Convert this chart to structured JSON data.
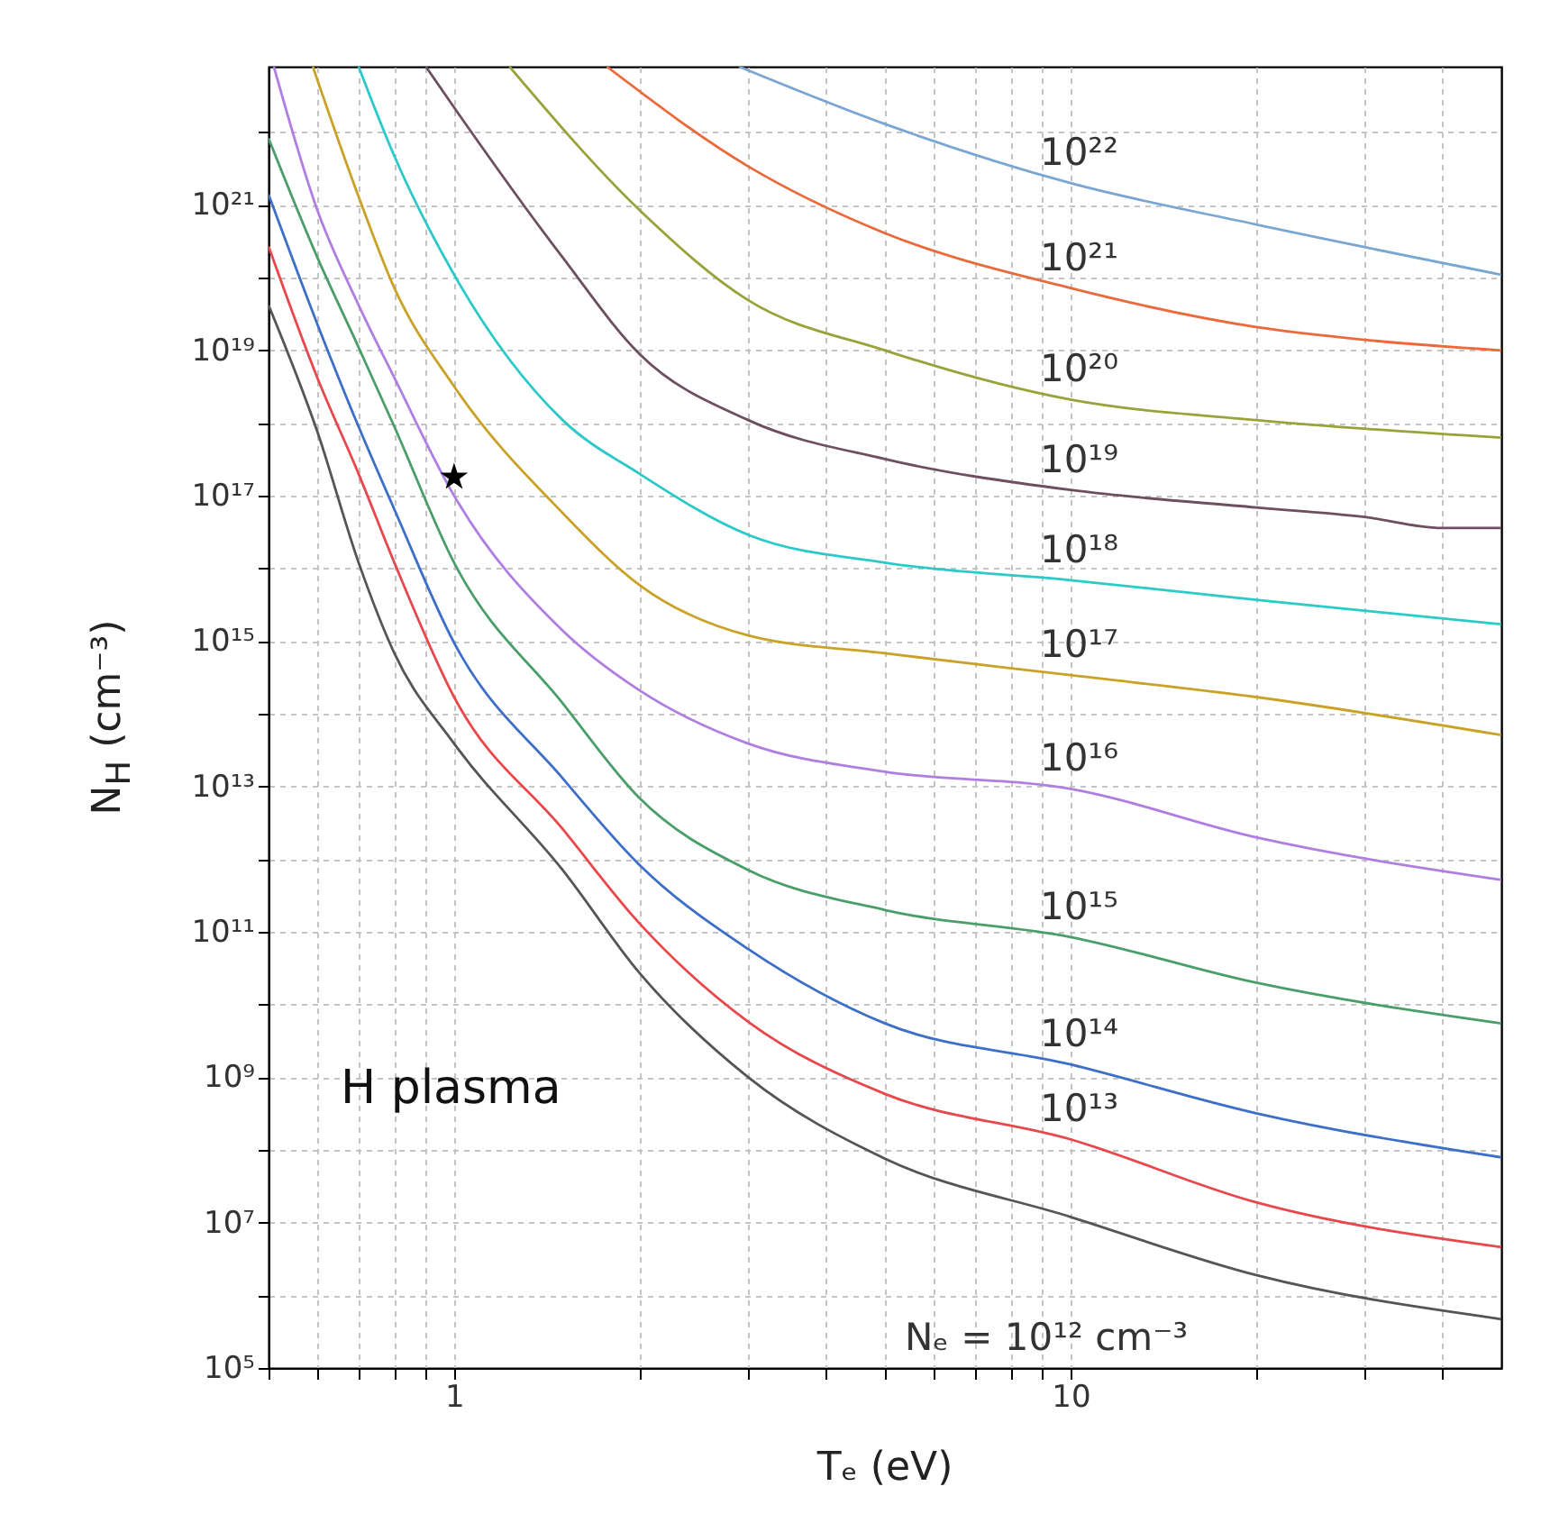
{
  "chart_data": {
    "type": "line",
    "xlabel": "Tₑ (eV)",
    "ylabel": "N$_{H}$ (cm⁻³)",
    "log": "xy",
    "grid": true,
    "line_style": "solid",
    "xlim": [
      0.5,
      50
    ],
    "ylim": [
      100000.0,
      8e+22
    ],
    "xticks": [
      {
        "value": 0.5,
        "label": null
      },
      {
        "value": 0.6,
        "label": null
      },
      {
        "value": 0.7,
        "label": null
      },
      {
        "value": 0.8,
        "label": null
      },
      {
        "value": 0.9,
        "label": null
      },
      1,
      {
        "value": 2,
        "label": null
      },
      {
        "value": 3,
        "label": null
      },
      {
        "value": 4,
        "label": null
      },
      {
        "value": 5,
        "label": null
      },
      {
        "value": 6,
        "label": null
      },
      {
        "value": 7,
        "label": null
      },
      {
        "value": 8,
        "label": null
      },
      {
        "value": 9,
        "label": null
      },
      10,
      {
        "value": 20,
        "label": null
      },
      {
        "value": 30,
        "label": null
      },
      {
        "value": 40,
        "label": null
      }
    ],
    "yticks": [
      {
        "value": 100000.0,
        "label": "10⁵"
      },
      {
        "value": 1000000.0,
        "label": null
      },
      {
        "value": 10000000.0,
        "label": "10⁷"
      },
      {
        "value": 100000000.0,
        "label": null
      },
      {
        "value": 1000000000.0,
        "label": "10⁹"
      },
      {
        "value": 10000000000.0,
        "label": null
      },
      {
        "value": 100000000000.0,
        "label": "10¹¹"
      },
      {
        "value": 1000000000000.0,
        "label": null
      },
      {
        "value": 10000000000000.0,
        "label": "10¹³"
      },
      {
        "value": 100000000000000.0,
        "label": null
      },
      {
        "value": 1000000000000000.0,
        "label": "10¹⁵"
      },
      {
        "value": 1e+16,
        "label": null
      },
      {
        "value": 1e+17,
        "label": "10¹⁷"
      },
      {
        "value": 1e+18,
        "label": null
      },
      {
        "value": 1e+19,
        "label": "10¹⁹"
      },
      {
        "value": 1e+20,
        "label": null
      },
      {
        "value": 1e+21,
        "label": "10²¹"
      },
      {
        "value": 1e+22,
        "label": null
      }
    ],
    "annotations": [
      "H plasma"
    ],
    "series": [
      {
        "name": "Nₑ = 10¹² cm⁻³",
        "color": "#555555",
        "x": [
          0.5,
          0.6,
          0.7,
          0.8,
          1,
          1.5,
          2,
          3,
          5,
          10,
          20,
          50
        ],
        "values": [
          4.2e+19,
          7.6e+17,
          1.2e+16,
          680000000000000.0,
          39000000000000.0,
          710000000000.0,
          27000000000.0,
          1000000000.0,
          76000000.0,
          12000000.0,
          1900000.0,
          470000.0
        ]
      },
      {
        "name": "10¹³",
        "color": "#e8474c",
        "x": [
          0.5,
          0.6,
          0.7,
          0.8,
          1,
          1.5,
          2,
          3,
          5,
          10,
          20,
          50
        ],
        "values": [
          2.7e+20,
          4.2e+18,
          2e+17,
          1.2e+16,
          170000000000000.0,
          2600000000000.0,
          130000000000.0,
          5800000000.0,
          590000000.0,
          140000000.0,
          19000000.0,
          4600000.0
        ]
      },
      {
        "name": "10¹⁴",
        "color": "#3d6fc8",
        "x": [
          0.5,
          0.6,
          0.7,
          0.8,
          1,
          1.5,
          2,
          3,
          5,
          10,
          20,
          50
        ],
        "values": [
          1.4e+21,
          2.3e+19,
          8.9e+17,
          6.5e+16,
          950000000000000.0,
          13000000000000.0,
          830000000000.0,
          58000000000.0,
          5500000000.0,
          1500000000.0,
          320000000.0,
          79000000.0
        ]
      },
      {
        "name": "10¹⁵",
        "color": "#4a9e6a",
        "x": [
          0.5,
          0.6,
          0.7,
          0.8,
          1,
          1.5,
          2,
          3,
          5,
          10,
          20,
          50
        ],
        "values": [
          8.3e+21,
          1.9e+20,
          1.1e+19,
          8.9e+17,
          1.2e+16,
          140000000000000.0,
          6900000000000.0,
          710000000000.0,
          200000000000.0,
          85000000000.0,
          20000000000.0,
          5500000000.0
        ]
      },
      {
        "name": "10¹⁶",
        "color": "#b07ee0",
        "x": [
          0.51,
          0.6,
          0.7,
          0.8,
          1,
          1.5,
          2,
          3,
          5,
          10,
          20,
          50
        ],
        "values": [
          8e+22,
          8.5e+20,
          4.2e+19,
          4.2e+18,
          1e+17,
          1400000000000000.0,
          210000000000000.0,
          39000000000000.0,
          16000000000000.0,
          9300000000000.0,
          2000000000000.0,
          520000000000.0
        ]
      },
      {
        "name": "10¹⁷",
        "color": "#c9a227",
        "x": [
          0.59,
          0.7,
          0.8,
          1,
          1.5,
          2,
          3,
          5,
          10,
          20,
          50
        ],
        "values": [
          8e+22,
          1.3e+21,
          7.2e+19,
          3.2e+18,
          5.8e+16,
          5900000000000000.0,
          1200000000000000.0,
          680000000000000.0,
          340000000000000.0,
          170000000000000.0,
          51000000000000.0
        ]
      },
      {
        "name": "10¹⁸",
        "color": "#2cc9c9",
        "x": [
          0.7,
          0.8,
          1,
          1.5,
          2,
          3,
          5,
          10,
          20,
          50
        ],
        "values": [
          8e+22,
          4.7e+21,
          1.1e+20,
          1.1e+18,
          2e+17,
          2.9e+16,
          1.2e+16,
          6900000000000000.0,
          3700000000000000.0,
          1700000000000000.0
        ]
      },
      {
        "name": "10¹⁹",
        "color": "#6e4f5f",
        "x": [
          0.9,
          1,
          1.5,
          2,
          3,
          5,
          10,
          20,
          30,
          40,
          50
        ],
        "values": [
          8e+22,
          2.2e+22,
          1.9e+20,
          8.9e+18,
          1.1e+18,
          3.2e+17,
          1.2e+17,
          6.9e+16,
          5.1e+16,
          3.6e+16,
          3.6e+16
        ]
      },
      {
        "name": "10²⁰",
        "color": "#98a33a",
        "x": [
          1.23,
          2,
          3,
          5,
          10,
          20,
          50
        ],
        "values": [
          8e+22,
          8.5e+20,
          4.9e+19,
          1e+19,
          2.1e+18,
          1.1e+18,
          6.3e+17
        ]
      },
      {
        "name": "10²¹",
        "color": "#ea6a3c",
        "x": [
          1.77,
          3,
          5,
          10,
          20,
          30,
          50
        ],
        "values": [
          8e+22,
          3.4e+21,
          4.1e+20,
          7.2e+19,
          2.1e+19,
          1.4e+19,
          1e+19
        ]
      },
      {
        "name": "10²²",
        "color": "#79a6d2",
        "x": [
          2.9,
          5,
          10,
          20,
          50
        ],
        "values": [
          8e+22,
          1.3e+22,
          2e+21,
          5.4e+20,
          1.1e+20
        ]
      },
      {
        "type": "scatter",
        "color": "#000000",
        "marker": "star",
        "x": [
          1
        ],
        "values": [
          1.8e+17
        ]
      }
    ]
  }
}
